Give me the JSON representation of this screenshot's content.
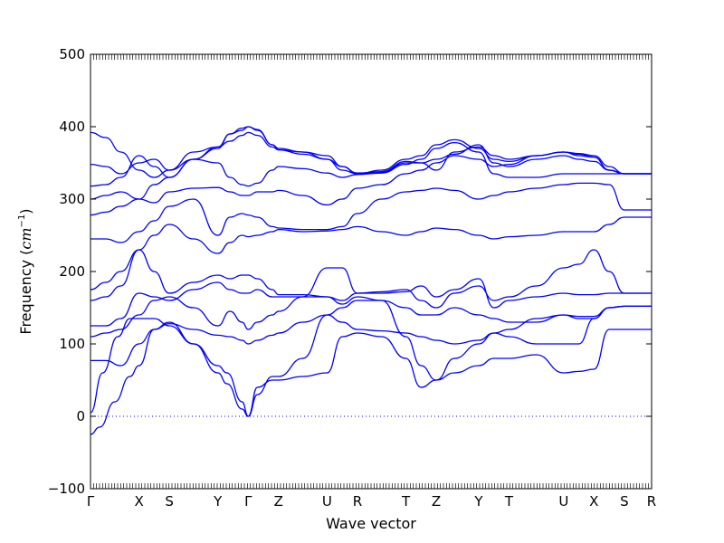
{
  "chart_data": {
    "type": "line",
    "xlabel": "Wave vector",
    "ylabel_text": "Frequency (",
    "ylabel_unit": "cm",
    "ylabel_exp": "−1",
    "ylabel_close": ")",
    "ylim": [
      -100,
      500
    ],
    "yticks": [
      -100,
      0,
      100,
      200,
      300,
      400,
      500
    ],
    "grid": false,
    "legend": "none",
    "series_color": "#0000ff",
    "zero_line": {
      "y": 0,
      "style": "dotted"
    },
    "xlim": [
      0,
      18.5
    ],
    "high_symmetry_points": [
      {
        "label": "Γ",
        "x": 0
      },
      {
        "label": "X",
        "x": 1.6
      },
      {
        "label": "S",
        "x": 2.6
      },
      {
        "label": "Y",
        "x": 4.2
      },
      {
        "label": "Γ",
        "x": 5.2
      },
      {
        "label": "Z",
        "x": 6.2
      },
      {
        "label": "U",
        "x": 7.8
      },
      {
        "label": "R",
        "x": 8.8
      },
      {
        "label": "T",
        "x": 10.4
      },
      {
        "label": "Z",
        "x": 11.4
      },
      {
        "label": "Y",
        "x": 12.8
      },
      {
        "label": "T",
        "x": 13.8
      },
      {
        "label": "U",
        "x": 15.6
      },
      {
        "label": "X",
        "x": 16.6
      },
      {
        "label": "S",
        "x": 17.6
      },
      {
        "label": "R",
        "x": 18.5
      }
    ],
    "series": [
      {
        "x": [
          0,
          0.3,
          0.8,
          1.3,
          1.6,
          2.1,
          2.6,
          3.4,
          4.2,
          4.5,
          5.0,
          5.2,
          5.5,
          6.0,
          6.2,
          7.0,
          7.8,
          8.3,
          8.8,
          9.6,
          10.4,
          10.9,
          11.4,
          12.0,
          12.8,
          13.3,
          13.8,
          14.7,
          15.6,
          16.1,
          16.6,
          17.1,
          17.6,
          18.5
        ],
        "values": [
          -25,
          -15,
          20,
          55,
          70,
          120,
          130,
          100,
          60,
          45,
          10,
          0,
          40,
          50,
          50,
          55,
          60,
          110,
          115,
          110,
          80,
          40,
          50,
          60,
          70,
          80,
          80,
          85,
          60,
          62,
          65,
          120,
          120,
          120
        ]
      },
      {
        "x": [
          0,
          0.4,
          0.9,
          1.3,
          1.6,
          2.1,
          2.6,
          3.4,
          4.2,
          4.5,
          5.0,
          5.2,
          5.5,
          6.0,
          6.2,
          7.0,
          7.8,
          8.3,
          8.8,
          9.6,
          10.4,
          10.9,
          11.4,
          12.0,
          12.8,
          13.3,
          13.8,
          14.7,
          15.6,
          16.1,
          16.6,
          17.1,
          17.6,
          18.5
        ],
        "values": [
          5,
          60,
          110,
          135,
          135,
          135,
          125,
          100,
          70,
          60,
          20,
          0,
          30,
          55,
          55,
          80,
          140,
          150,
          160,
          160,
          110,
          70,
          50,
          80,
          100,
          115,
          110,
          100,
          100,
          100,
          135,
          150,
          152,
          152
        ]
      },
      {
        "x": [
          0,
          0.5,
          1.0,
          1.6,
          2.1,
          2.6,
          3.4,
          4.2,
          4.6,
          5.0,
          5.2,
          5.5,
          6.0,
          6.2,
          7.0,
          7.8,
          8.3,
          8.8,
          9.6,
          10.4,
          10.9,
          11.4,
          12.0,
          12.8,
          13.3,
          13.8,
          14.7,
          15.6,
          16.1,
          16.6,
          17.1,
          17.6,
          18.5
        ],
        "values": [
          77,
          77,
          70,
          100,
          120,
          128,
          120,
          112,
          110,
          105,
          100,
          105,
          112,
          115,
          130,
          140,
          130,
          120,
          118,
          115,
          110,
          105,
          100,
          105,
          115,
          120,
          135,
          140,
          135,
          135,
          150,
          152,
          152
        ]
      },
      {
        "x": [
          0,
          0.5,
          1.0,
          1.6,
          2.1,
          2.6,
          3.4,
          4.2,
          4.6,
          5.0,
          5.2,
          5.5,
          6.0,
          6.2,
          7.0,
          7.8,
          8.3,
          8.8,
          9.6,
          10.4,
          10.9,
          11.4,
          12.0,
          12.8,
          13.3,
          13.8,
          14.7,
          15.6,
          16.1,
          16.6,
          17.1,
          17.6,
          18.5
        ],
        "values": [
          110,
          115,
          120,
          140,
          160,
          165,
          150,
          125,
          145,
          130,
          120,
          130,
          140,
          145,
          165,
          165,
          155,
          165,
          160,
          150,
          140,
          140,
          150,
          140,
          135,
          130,
          130,
          140,
          138,
          138,
          150,
          152,
          152
        ]
      },
      {
        "x": [
          0,
          0.5,
          1.0,
          1.6,
          2.1,
          2.6,
          3.4,
          4.2,
          4.6,
          5.0,
          5.2,
          5.5,
          6.0,
          6.2,
          7.0,
          7.8,
          8.3,
          8.8,
          9.6,
          10.4,
          10.9,
          11.4,
          12.0,
          12.8,
          13.3,
          13.8,
          14.7,
          15.6,
          16.1,
          16.6,
          17.1,
          17.6,
          18.5
        ],
        "values": [
          125,
          125,
          135,
          170,
          165,
          160,
          175,
          185,
          175,
          170,
          170,
          175,
          165,
          165,
          165,
          205,
          205,
          170,
          172,
          175,
          160,
          150,
          170,
          180,
          160,
          165,
          180,
          205,
          210,
          230,
          200,
          170,
          170
        ]
      },
      {
        "x": [
          0,
          0.5,
          1.0,
          1.6,
          2.1,
          2.6,
          3.4,
          4.2,
          4.6,
          5.0,
          5.2,
          5.5,
          6.0,
          6.2,
          7.0,
          7.8,
          8.3,
          8.8,
          9.6,
          10.4,
          10.9,
          11.4,
          12.0,
          12.8,
          13.3,
          13.8,
          14.7,
          15.6,
          16.1,
          16.6,
          17.1,
          17.6,
          18.5
        ],
        "values": [
          160,
          165,
          180,
          230,
          200,
          170,
          185,
          195,
          190,
          195,
          195,
          190,
          175,
          168,
          168,
          165,
          160,
          170,
          170,
          172,
          180,
          165,
          175,
          190,
          150,
          160,
          165,
          170,
          168,
          168,
          170,
          170,
          170
        ]
      },
      {
        "x": [
          0,
          0.5,
          1.0,
          1.6,
          2.1,
          2.6,
          3.4,
          4.2,
          4.6,
          5.0,
          5.2,
          5.5,
          6.0,
          6.2,
          7.0,
          7.8,
          8.3,
          8.8,
          9.6,
          10.4,
          10.9,
          11.4,
          12.0,
          12.8,
          13.3,
          13.8,
          14.7,
          15.6,
          16.1,
          16.6,
          17.1,
          17.6,
          18.5
        ],
        "values": [
          175,
          185,
          200,
          230,
          250,
          265,
          245,
          225,
          240,
          250,
          248,
          250,
          255,
          258,
          255,
          256,
          258,
          262,
          255,
          250,
          255,
          260,
          258,
          250,
          245,
          248,
          250,
          255,
          255,
          255,
          265,
          275,
          275
        ]
      },
      {
        "x": [
          0,
          0.5,
          1.0,
          1.6,
          2.1,
          2.6,
          3.4,
          4.2,
          4.6,
          5.0,
          5.2,
          5.5,
          6.0,
          6.2,
          7.0,
          7.8,
          8.3,
          8.8,
          9.6,
          10.4,
          10.9,
          11.4,
          12.0,
          12.8,
          13.3,
          13.8,
          14.7,
          15.6,
          16.1,
          16.6,
          17.1,
          17.6,
          18.5
        ],
        "values": [
          245,
          245,
          240,
          255,
          270,
          290,
          300,
          250,
          275,
          280,
          278,
          275,
          262,
          260,
          258,
          258,
          262,
          280,
          300,
          310,
          312,
          315,
          312,
          300,
          305,
          310,
          315,
          320,
          322,
          322,
          320,
          285,
          285
        ]
      },
      {
        "x": [
          0,
          0.5,
          1.0,
          1.6,
          2.1,
          2.6,
          3.4,
          4.2,
          4.6,
          5.0,
          5.2,
          5.5,
          6.0,
          6.2,
          7.0,
          7.8,
          8.3,
          8.8,
          9.6,
          10.4,
          10.9,
          11.4,
          12.0,
          12.8,
          13.3,
          13.8,
          14.7,
          15.6,
          16.1,
          16.6,
          17.1,
          17.6,
          18.5
        ],
        "values": [
          278,
          282,
          290,
          300,
          295,
          310,
          315,
          316,
          310,
          305,
          305,
          310,
          310,
          312,
          305,
          292,
          300,
          315,
          320,
          335,
          340,
          350,
          360,
          355,
          345,
          348,
          360,
          365,
          360,
          358,
          340,
          335,
          335
        ]
      },
      {
        "x": [
          0,
          0.5,
          1.0,
          1.6,
          2.1,
          2.6,
          3.4,
          4.2,
          4.6,
          5.0,
          5.2,
          5.5,
          6.0,
          6.2,
          7.0,
          7.8,
          8.3,
          8.8,
          9.6,
          10.4,
          10.9,
          11.4,
          12.0,
          12.8,
          13.3,
          13.8,
          14.7,
          15.6,
          16.1,
          16.6,
          17.1,
          17.6,
          18.5
        ],
        "values": [
          300,
          305,
          310,
          300,
          320,
          330,
          355,
          370,
          390,
          395,
          400,
          395,
          375,
          368,
          365,
          355,
          345,
          335,
          340,
          355,
          360,
          375,
          382,
          370,
          355,
          352,
          360,
          365,
          363,
          360,
          345,
          335,
          335
        ]
      },
      {
        "x": [
          0,
          0.5,
          1.0,
          1.6,
          2.1,
          2.6,
          3.4,
          4.2,
          4.6,
          5.0,
          5.2,
          5.5,
          6.0,
          6.2,
          7.0,
          7.8,
          8.3,
          8.8,
          9.6,
          10.4,
          10.9,
          11.4,
          12.0,
          12.8,
          13.3,
          13.8,
          14.7,
          15.6,
          16.1,
          16.6,
          17.1,
          17.6,
          18.5
        ],
        "values": [
          318,
          320,
          330,
          360,
          345,
          330,
          355,
          350,
          330,
          320,
          318,
          322,
          340,
          345,
          342,
          336,
          330,
          334,
          336,
          348,
          355,
          370,
          378,
          365,
          335,
          330,
          330,
          335,
          335,
          335,
          335,
          335,
          335
        ]
      },
      {
        "x": [
          0,
          0.5,
          1.0,
          1.6,
          2.1,
          2.6,
          3.4,
          4.2,
          4.6,
          5.0,
          5.2,
          5.5,
          6.0,
          6.2,
          7.0,
          7.8,
          8.3,
          8.8,
          9.6,
          10.4,
          10.9,
          11.4,
          12.0,
          12.8,
          13.3,
          13.8,
          14.7,
          15.6,
          16.1,
          16.6,
          17.1,
          17.6,
          18.5
        ],
        "values": [
          348,
          345,
          335,
          350,
          355,
          340,
          365,
          372,
          380,
          388,
          392,
          388,
          372,
          368,
          362,
          355,
          340,
          335,
          337,
          350,
          350,
          355,
          362,
          375,
          350,
          345,
          355,
          360,
          355,
          352,
          340,
          335,
          335
        ]
      },
      {
        "x": [
          0,
          0.5,
          1.0,
          1.6,
          2.1,
          2.6,
          3.4,
          4.2,
          4.6,
          5.0,
          5.2,
          5.5,
          6.0,
          6.2,
          7.0,
          7.8,
          8.3,
          8.8,
          9.6,
          10.4,
          10.9,
          11.4,
          12.0,
          12.8,
          13.3,
          13.8,
          14.7,
          15.6,
          16.1,
          16.6,
          17.1,
          17.6,
          18.5
        ],
        "values": [
          392,
          385,
          365,
          340,
          330,
          340,
          355,
          372,
          390,
          398,
          400,
          396,
          375,
          370,
          365,
          360,
          345,
          336,
          338,
          352,
          350,
          340,
          365,
          372,
          360,
          355,
          360,
          365,
          362,
          358,
          340,
          335,
          335
        ]
      }
    ]
  }
}
